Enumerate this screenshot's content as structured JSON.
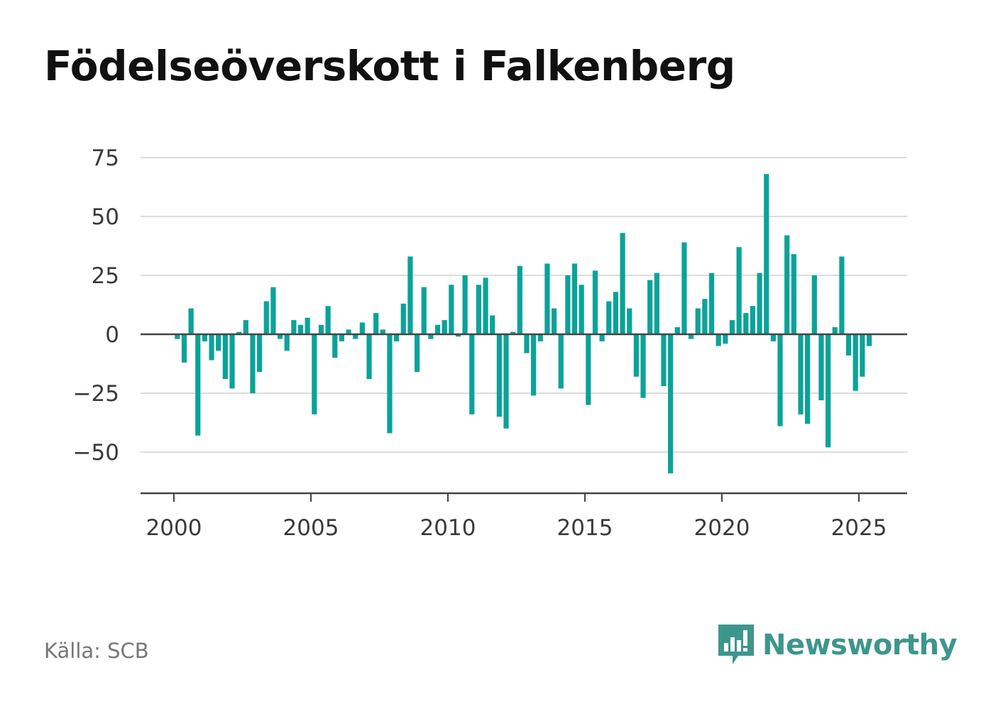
{
  "chart_data": {
    "type": "bar",
    "title": "Födelseöverskott i Falkenberg",
    "xlabel": "",
    "ylabel": "",
    "color": "#0aa399",
    "x_ticks": [
      "2000",
      "2005",
      "2010",
      "2015",
      "2020",
      "2025"
    ],
    "y_ticks": [
      "75",
      "50",
      "25",
      "0",
      "−25",
      "−50"
    ],
    "ylim": [
      -67,
      80
    ],
    "xlim": [
      1998.8,
      2026.8
    ],
    "grid": true,
    "legend": "none",
    "x": [
      2000.125,
      2000.375,
      2000.625,
      2000.875,
      2001.125,
      2001.375,
      2001.625,
      2001.875,
      2002.125,
      2002.375,
      2002.625,
      2002.875,
      2003.125,
      2003.375,
      2003.625,
      2003.875,
      2004.125,
      2004.375,
      2004.625,
      2004.875,
      2005.125,
      2005.375,
      2005.625,
      2005.875,
      2006.125,
      2006.375,
      2006.625,
      2006.875,
      2007.125,
      2007.375,
      2007.625,
      2007.875,
      2008.125,
      2008.375,
      2008.625,
      2008.875,
      2009.125,
      2009.375,
      2009.625,
      2009.875,
      2010.125,
      2010.375,
      2010.625,
      2010.875,
      2011.125,
      2011.375,
      2011.625,
      2011.875,
      2012.125,
      2012.375,
      2012.625,
      2012.875,
      2013.125,
      2013.375,
      2013.625,
      2013.875,
      2014.125,
      2014.375,
      2014.625,
      2014.875,
      2015.125,
      2015.375,
      2015.625,
      2015.875,
      2016.125,
      2016.375,
      2016.625,
      2016.875,
      2017.125,
      2017.375,
      2017.625,
      2017.875,
      2018.125,
      2018.375,
      2018.625,
      2018.875,
      2019.125,
      2019.375,
      2019.625,
      2019.875,
      2020.125,
      2020.375,
      2020.625,
      2020.875,
      2021.125,
      2021.375,
      2021.625,
      2021.875,
      2022.125,
      2022.375,
      2022.625,
      2022.875,
      2023.125,
      2023.375,
      2023.625,
      2023.875,
      2024.125,
      2024.375,
      2024.625,
      2024.875,
      2025.125,
      2025.375
    ],
    "values": [
      -2,
      -12,
      11,
      -43,
      -3,
      -11,
      -7,
      -19,
      -23,
      1,
      6,
      -25,
      -16,
      14,
      20,
      -2,
      -7,
      6,
      4,
      7,
      -34,
      4,
      12,
      -10,
      -3,
      2,
      -2,
      5,
      -19,
      9,
      2,
      -42,
      -3,
      13,
      33,
      -16,
      20,
      -2,
      4,
      6,
      21,
      -1,
      25,
      -34,
      21,
      24,
      8,
      -35,
      -40,
      1,
      29,
      -8,
      -26,
      -3,
      30,
      11,
      -23,
      25,
      30,
      21,
      -30,
      27,
      -3,
      14,
      18,
      43,
      11,
      -18,
      -27,
      23,
      26,
      -22,
      -59,
      3,
      39,
      -2,
      11,
      15,
      26,
      -5,
      -4,
      6,
      37,
      9,
      12,
      26,
      68,
      -3,
      -39,
      42,
      34,
      -34,
      -38,
      25,
      -28,
      -48,
      3,
      33,
      -9,
      -24,
      -18,
      -5
    ]
  },
  "footer": {
    "source": "Källa: SCB",
    "brand": "Newsworthy",
    "brand_color": "#3d968c",
    "brand_icon": "newsworthy-logo-icon"
  }
}
